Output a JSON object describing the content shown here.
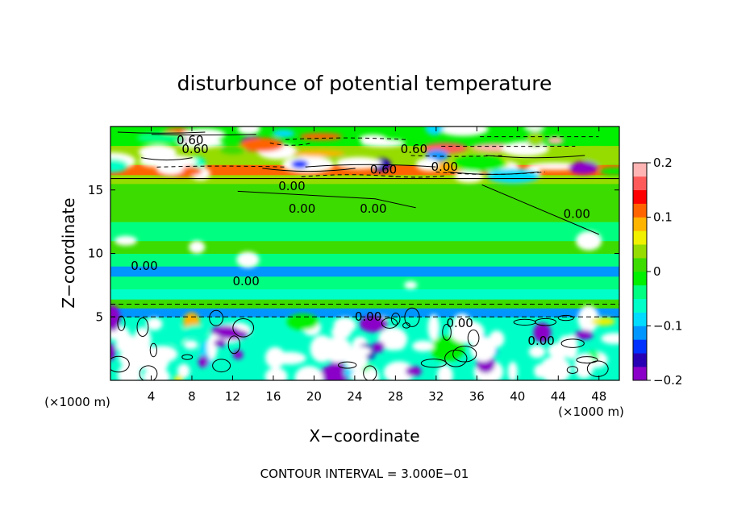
{
  "chart_data": {
    "type": "heatmap",
    "title": "disturbunce of potential temperature",
    "xlabel": "X−coordinate",
    "ylabel": "Z−coordinate",
    "x_unit": "(×1000 m)",
    "z_unit": "(×1000 m)",
    "x_ticks": [
      4,
      8,
      12,
      16,
      20,
      24,
      28,
      32,
      36,
      40,
      44,
      48
    ],
    "z_ticks": [
      5,
      10,
      15
    ],
    "xlim": [
      0,
      50
    ],
    "zlim": [
      0,
      20
    ],
    "colorbar": {
      "ticks": [
        "0.2",
        "0.1",
        "0",
        "−0.1",
        "−0.2"
      ],
      "range": [
        -0.2,
        0.2
      ],
      "colors": [
        "#8b00c8",
        "#2800b4",
        "#0032ff",
        "#0096ff",
        "#00dcff",
        "#00ffc8",
        "#00ff80",
        "#00f000",
        "#3cdc00",
        "#96dc00",
        "#f0f000",
        "#ffb400",
        "#ff6400",
        "#ff0000",
        "#ff5a5a",
        "#ffb4b4"
      ]
    },
    "contour_labels": [
      "0.60",
      "0.60",
      "0.60",
      "0.60",
      "0.00",
      "0.00",
      "0.00",
      "0.00",
      "0.00",
      "0.00",
      "0.00",
      "0.00",
      "0.00",
      "0.00"
    ],
    "footer": "CONTOUR INTERVAL = 3.000E−01"
  }
}
